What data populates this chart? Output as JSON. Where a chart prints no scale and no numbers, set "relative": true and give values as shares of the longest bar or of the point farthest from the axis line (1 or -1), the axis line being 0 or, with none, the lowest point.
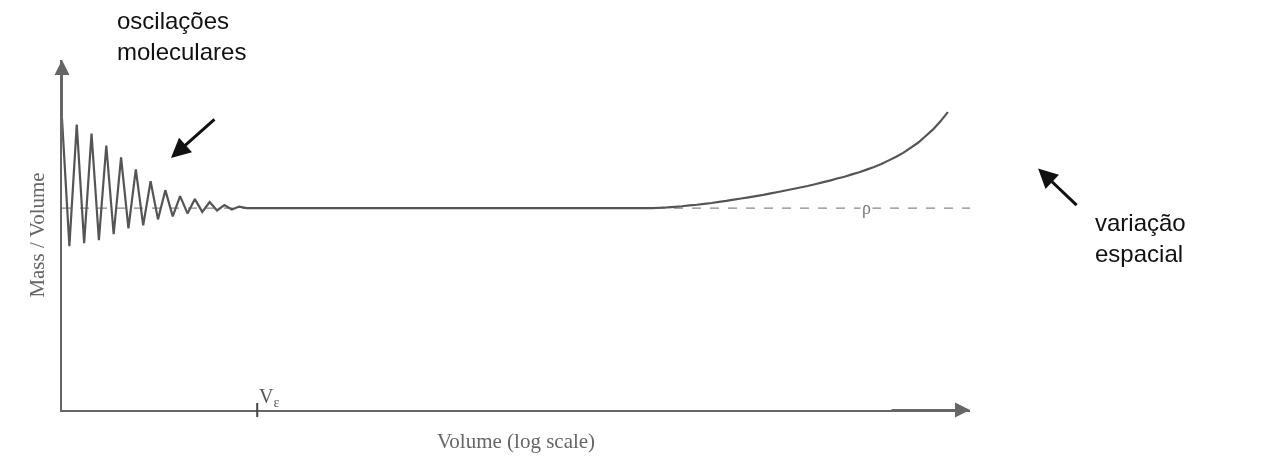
{
  "chart_data": {
    "type": "line",
    "relative": true,
    "xlabel": "Volume (log scale)",
    "ylabel": "Mass / Volume",
    "categories": [
      null,
      null,
      null,
      null,
      null,
      null,
      null,
      null,
      null,
      null,
      null,
      null,
      null,
      null,
      null,
      null,
      null,
      null,
      null,
      null,
      null,
      null,
      null,
      null,
      null,
      null,
      null,
      null,
      null,
      null,
      null,
      null,
      null,
      null,
      null,
      null,
      null,
      null,
      null,
      null,
      null,
      null,
      null,
      null,
      null,
      null,
      null,
      null,
      null,
      null,
      null,
      null,
      null,
      null,
      null,
      null,
      null,
      null,
      null,
      null,
      null,
      null,
      null,
      null,
      null,
      null,
      null,
      null,
      null,
      null,
      null,
      null,
      null,
      null,
      null,
      null,
      null,
      null,
      null,
      null,
      null,
      null,
      null,
      null,
      null,
      null,
      null,
      null,
      null,
      null,
      null,
      null,
      null,
      null,
      null,
      null,
      null,
      null,
      null,
      null,
      null,
      null,
      null,
      null,
      null,
      null,
      null,
      null,
      null,
      null,
      null,
      null,
      null,
      null,
      null,
      null,
      null,
      null,
      null,
      null,
      null
    ],
    "series": [
      {
        "color": "#555555",
        "values": [
          0.978,
          0.55,
          0.958,
          0.56,
          0.928,
          0.57,
          0.888,
          0.59,
          0.848,
          0.61,
          0.808,
          0.62,
          0.768,
          0.64,
          0.738,
          0.65,
          0.718,
          0.66,
          0.708,
          0.665,
          0.698,
          0.67,
          0.688,
          0.673,
          0.683,
          0.678,
          0.678,
          0.678,
          0.678,
          0.678,
          0.678,
          0.678,
          0.678,
          0.678,
          0.678,
          0.678,
          0.678,
          0.678,
          0.678,
          0.678,
          0.678,
          0.678,
          0.678,
          0.678,
          0.678,
          0.678,
          0.678,
          0.678,
          0.678,
          0.678,
          0.678,
          0.678,
          0.678,
          0.678,
          0.678,
          0.678,
          0.678,
          0.678,
          0.678,
          0.678,
          0.678,
          0.678,
          0.678,
          0.678,
          0.678,
          0.678,
          0.678,
          0.678,
          0.678,
          0.678,
          0.678,
          0.678,
          0.678,
          0.678,
          0.678,
          0.678,
          0.678,
          0.678,
          0.678,
          0.678,
          0.678,
          0.679,
          0.68,
          0.682,
          0.684,
          0.687,
          0.689,
          0.692,
          0.695,
          0.699,
          0.702,
          0.706,
          0.71,
          0.714,
          0.718,
          0.722,
          0.727,
          0.732,
          0.737,
          0.742,
          0.747,
          0.752,
          0.758,
          0.764,
          0.77,
          0.777,
          0.783,
          0.791,
          0.798,
          0.807,
          0.816,
          0.826,
          0.838,
          0.85,
          0.864,
          0.881,
          0.898,
          0.92,
          0.942,
          0.969,
          1.0
        ]
      }
    ],
    "ref_lines": [
      {
        "axis": "y",
        "value": 0.678,
        "label": "ρ",
        "color": "#888888",
        "line_style": "dashed"
      }
    ],
    "annotations": [
      "V$_{ε}$",
      "oscilações\nmoleculares",
      "variação\nespacial"
    ],
    "grid": false,
    "marker": "none",
    "line_style": "solid"
  }
}
